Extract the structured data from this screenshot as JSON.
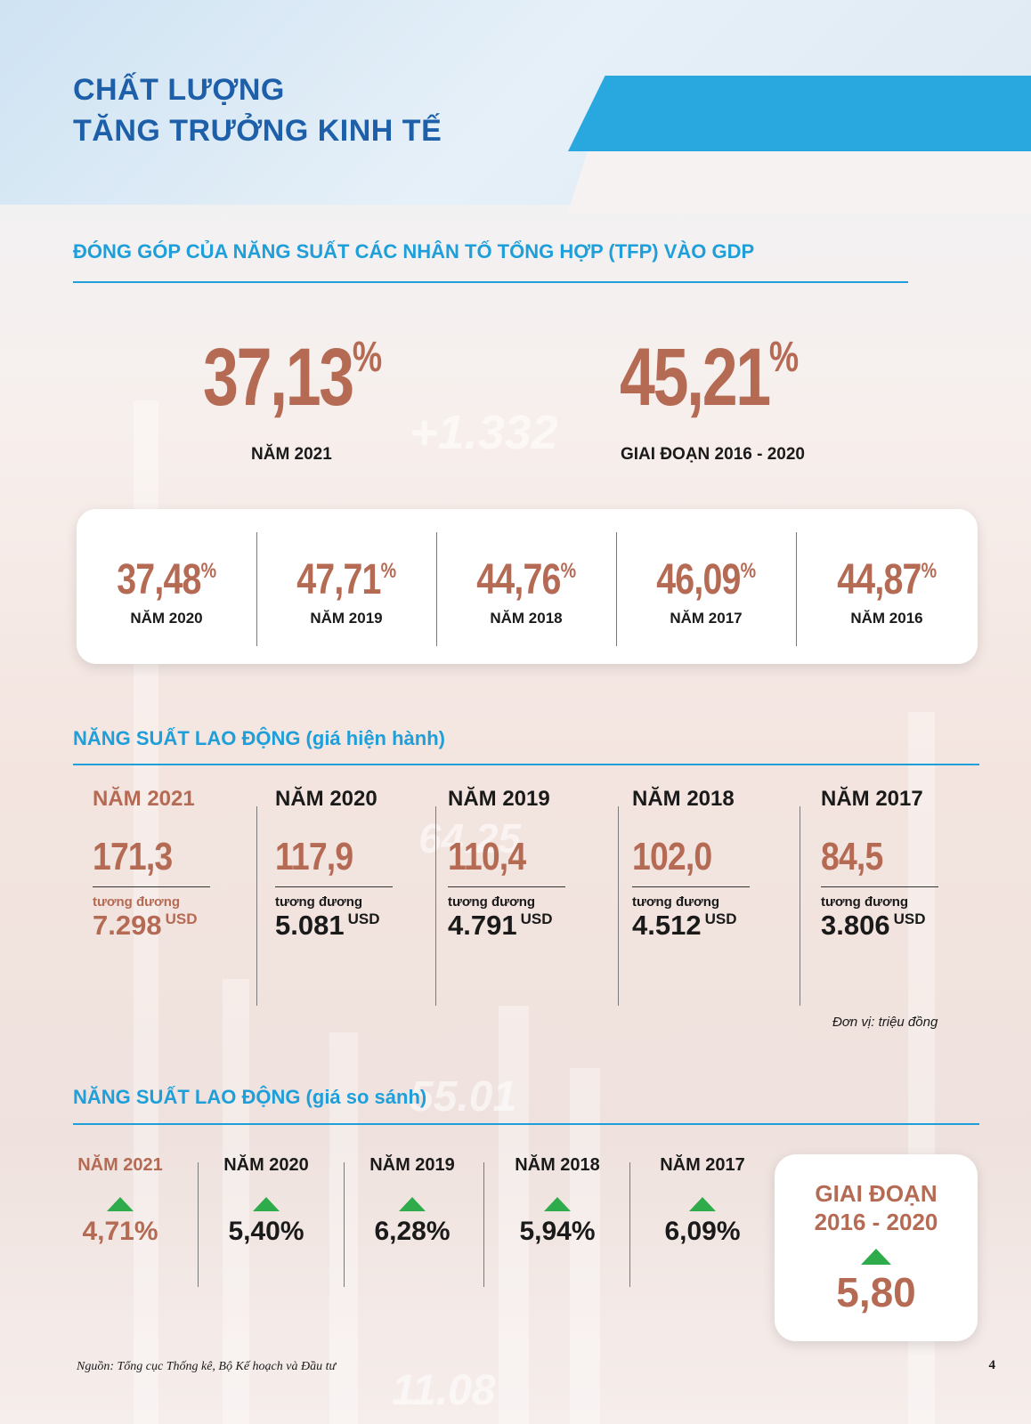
{
  "header": {
    "title_line1": "CHẤT LƯỢNG",
    "title_line2": "TĂNG TRƯỞNG KINH TẾ"
  },
  "tfp": {
    "section_title": "ĐÓNG GÓP CỦA NĂNG SUẤT CÁC NHÂN TỐ TỔNG HỢP (TFP) VÀO GDP",
    "highlights": [
      {
        "value": "37,13",
        "unit": "%",
        "label": "NĂM 2021"
      },
      {
        "value": "45,21",
        "unit": "%",
        "label": "GIAI ĐOẠN 2016 - 2020"
      }
    ],
    "years": [
      {
        "value": "37,48",
        "unit": "%",
        "label": "NĂM 2020"
      },
      {
        "value": "47,71",
        "unit": "%",
        "label": "NĂM 2019"
      },
      {
        "value": "44,76",
        "unit": "%",
        "label": "NĂM 2018"
      },
      {
        "value": "46,09",
        "unit": "%",
        "label": "NĂM 2017"
      },
      {
        "value": "44,87",
        "unit": "%",
        "label": "NĂM 2016"
      }
    ]
  },
  "labor_current": {
    "section_title": "NĂNG SUẤT LAO ĐỘNG (giá hiện hành)",
    "equiv_label": "tương đương",
    "usd_unit": "USD",
    "unit_note": "Đơn vị: triệu đồng",
    "items": [
      {
        "year": "NĂM 2021",
        "value": "171,3",
        "usd": "7.298"
      },
      {
        "year": "NĂM 2020",
        "value": "117,9",
        "usd": "5.081"
      },
      {
        "year": "NĂM 2019",
        "value": "110,4",
        "usd": "4.791"
      },
      {
        "year": "NĂM 2018",
        "value": "102,0",
        "usd": "4.512"
      },
      {
        "year": "NĂM 2017",
        "value": "84,5",
        "usd": "3.806"
      }
    ]
  },
  "labor_compare": {
    "section_title": "NĂNG SUẤT LAO ĐỘNG (giá so sánh)",
    "items": [
      {
        "year": "NĂM 2021",
        "value": "4,71%"
      },
      {
        "year": "NĂM 2020",
        "value": "5,40%"
      },
      {
        "year": "NĂM 2019",
        "value": "6,28%"
      },
      {
        "year": "NĂM 2018",
        "value": "5,94%"
      },
      {
        "year": "NĂM 2017",
        "value": "6,09%"
      }
    ],
    "period": {
      "line1": "GIAI ĐOẠN",
      "line2": "2016 - 2020",
      "value": "5,80"
    }
  },
  "footer": {
    "source": "Nguồn: Tổng cục Thống kê, Bộ Kế hoạch và Đầu tư",
    "page": "4"
  },
  "colors": {
    "accent_blue": "#1f9fd9",
    "title_blue": "#1d5fa8",
    "value_brown": "#b56a54",
    "up_green": "#2eab4a"
  },
  "icons": {
    "increase": "triangle-up-icon"
  }
}
